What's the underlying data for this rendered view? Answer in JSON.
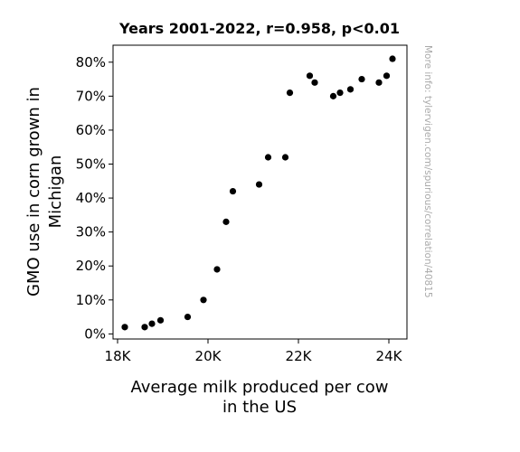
{
  "chart_data": {
    "type": "scatter",
    "title": "Years 2001-2022, r=0.958, p<0.01",
    "xlabel": [
      "Average milk produced per cow",
      "in the US"
    ],
    "ylabel": [
      "GMO use in corn grown in",
      "Michigan"
    ],
    "xlim": [
      17900,
      24400
    ],
    "ylim": [
      -1.5,
      85
    ],
    "x_ticks": [
      {
        "value": 18000,
        "label": "18K"
      },
      {
        "value": 20000,
        "label": "20K"
      },
      {
        "value": 22000,
        "label": "22K"
      },
      {
        "value": 24000,
        "label": "24K"
      }
    ],
    "y_ticks": [
      {
        "value": 0,
        "label": "0%"
      },
      {
        "value": 10,
        "label": "10%"
      },
      {
        "value": 20,
        "label": "20%"
      },
      {
        "value": 30,
        "label": "30%"
      },
      {
        "value": 40,
        "label": "40%"
      },
      {
        "value": 50,
        "label": "50%"
      },
      {
        "value": 60,
        "label": "60%"
      },
      {
        "value": 70,
        "label": "70%"
      },
      {
        "value": 80,
        "label": "80%"
      }
    ],
    "grid": false,
    "marker_color": "#000000",
    "points": [
      {
        "x": 18160,
        "y": 2
      },
      {
        "x": 18600,
        "y": 2
      },
      {
        "x": 18760,
        "y": 3
      },
      {
        "x": 18950,
        "y": 4
      },
      {
        "x": 19550,
        "y": 5
      },
      {
        "x": 19900,
        "y": 10
      },
      {
        "x": 20200,
        "y": 19
      },
      {
        "x": 20400,
        "y": 33
      },
      {
        "x": 20550,
        "y": 42
      },
      {
        "x": 21130,
        "y": 44
      },
      {
        "x": 21330,
        "y": 52
      },
      {
        "x": 21710,
        "y": 52
      },
      {
        "x": 21810,
        "y": 71
      },
      {
        "x": 22250,
        "y": 76
      },
      {
        "x": 22360,
        "y": 74
      },
      {
        "x": 22770,
        "y": 70
      },
      {
        "x": 22920,
        "y": 71
      },
      {
        "x": 23150,
        "y": 72
      },
      {
        "x": 23400,
        "y": 75
      },
      {
        "x": 23780,
        "y": 74
      },
      {
        "x": 23950,
        "y": 76
      },
      {
        "x": 24080,
        "y": 81
      }
    ]
  },
  "side_note": "More info: tylervigen.com/spurious/correlation/40815"
}
